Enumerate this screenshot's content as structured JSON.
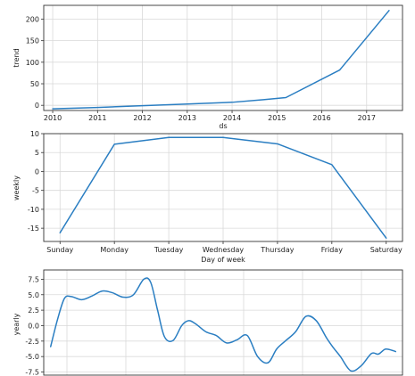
{
  "chart_data": [
    {
      "type": "line",
      "xlabel": "ds",
      "ylabel": "trend",
      "x_ticks": [
        "2010",
        "2011",
        "2012",
        "2013",
        "2014",
        "2015",
        "2016",
        "2017"
      ],
      "y_ticks": [
        "0",
        "50",
        "100",
        "150",
        "200"
      ],
      "xlim": [
        2009.8,
        2017.8
      ],
      "ylim": [
        -12,
        232
      ],
      "grid": true,
      "color": "#2a7ec2",
      "series": [
        {
          "x": [
            2010.0,
            2011.0,
            2012.0,
            2013.0,
            2014.0,
            2014.7,
            2015.2,
            2016.4,
            2017.5
          ],
          "y": [
            -8,
            -5,
            -1,
            3,
            7,
            13,
            18,
            82,
            220
          ]
        }
      ]
    },
    {
      "type": "line",
      "xlabel": "Day of week",
      "ylabel": "weekly",
      "categories": [
        "Sunday",
        "Monday",
        "Tuesday",
        "Wednesday",
        "Thursday",
        "Friday",
        "Saturday"
      ],
      "values": [
        -16.2,
        7.2,
        9.0,
        9.0,
        7.3,
        1.8,
        -17.6
      ],
      "y_ticks": [
        "10",
        "5",
        "0",
        "-5",
        "-10",
        "-15"
      ],
      "ylim": [
        -18.5,
        10
      ],
      "grid": true,
      "color": "#2a7ec2"
    },
    {
      "type": "line",
      "xlabel": "",
      "ylabel": "yearly",
      "y_ticks": [
        "7.5",
        "5.0",
        "2.5",
        "0.0",
        "-2.5",
        "-5.0",
        "-7.5"
      ],
      "ylim": [
        -8.0,
        9.0
      ],
      "xlim": [
        0,
        1
      ],
      "grid": true,
      "color": "#2a7ec2",
      "series": [
        {
          "x": [
            0.0,
            0.02,
            0.04,
            0.06,
            0.09,
            0.12,
            0.15,
            0.18,
            0.21,
            0.24,
            0.27,
            0.29,
            0.31,
            0.33,
            0.355,
            0.38,
            0.4,
            0.42,
            0.45,
            0.48,
            0.51,
            0.54,
            0.57,
            0.6,
            0.63,
            0.655,
            0.68,
            0.71,
            0.74,
            0.77,
            0.8,
            0.82,
            0.84,
            0.87,
            0.9,
            0.93,
            0.95,
            0.97,
            0.99,
            1.0
          ],
          "y": [
            -3.4,
            1.0,
            4.4,
            4.7,
            4.2,
            4.8,
            5.6,
            5.3,
            4.6,
            5.0,
            7.5,
            7.0,
            2.5,
            -1.8,
            -2.4,
            0.0,
            0.8,
            0.3,
            -1.0,
            -1.6,
            -2.8,
            -2.3,
            -1.6,
            -5.0,
            -6.0,
            -3.8,
            -2.5,
            -1.0,
            1.5,
            0.8,
            -2.0,
            -3.6,
            -5.0,
            -7.3,
            -6.5,
            -4.5,
            -4.6,
            -3.8,
            -4.0,
            -4.2
          ]
        }
      ]
    }
  ]
}
